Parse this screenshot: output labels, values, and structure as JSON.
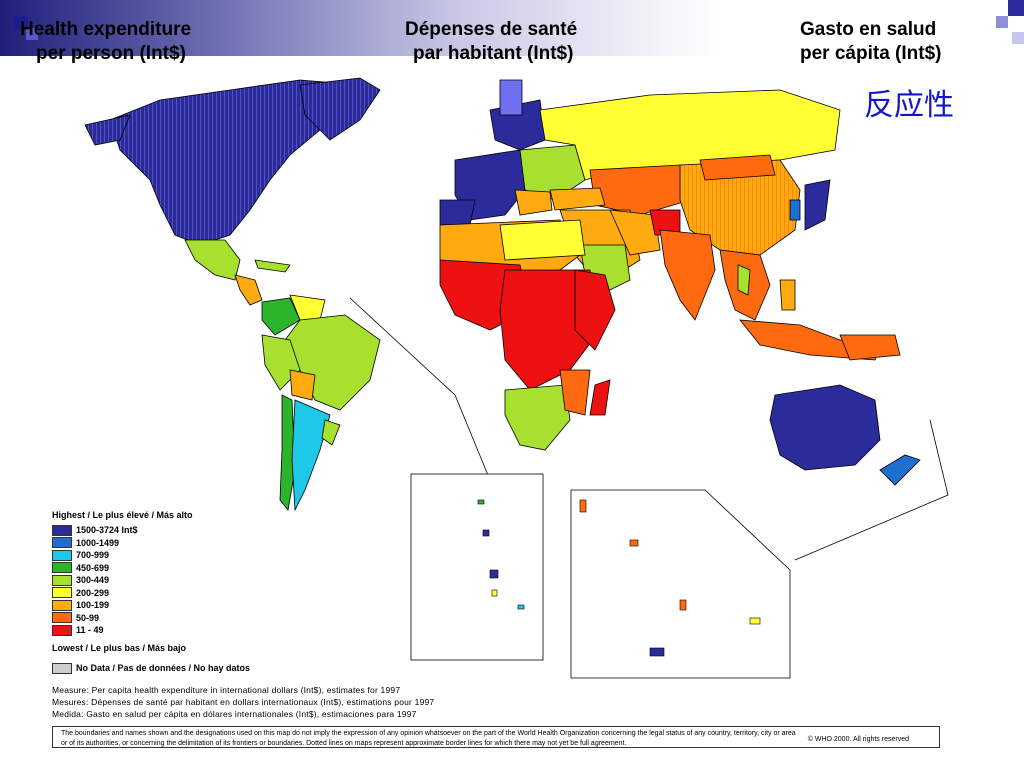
{
  "titles": {
    "en_line1": "Health expenditure",
    "en_line2": "per person (Int$)",
    "fr_line1": "Dépenses de santé",
    "fr_line2": "par habitant (Int$)",
    "es_line1": "Gasto en salud",
    "es_line2": "per cápita (Int$)"
  },
  "cjk_text": "反应性",
  "legend": {
    "highest": "Highest / Le plus élevé / Más alto",
    "lowest": "Lowest / Le plus bas / Más bajo",
    "no_data": "No Data / Pas de données / No hay datos",
    "no_data_color": "#cccccc",
    "classes": [
      {
        "label": "1500-3724 Int$",
        "color": "#2b2b9c"
      },
      {
        "label": "1000-1499",
        "color": "#1f6fd1"
      },
      {
        "label": "700-999",
        "color": "#1ec8e8"
      },
      {
        "label": "450-699",
        "color": "#2bb52b"
      },
      {
        "label": "300-449",
        "color": "#a8e030"
      },
      {
        "label": "200-299",
        "color": "#ffff33"
      },
      {
        "label": "100-199",
        "color": "#ffaa11"
      },
      {
        "label": "50-99",
        "color": "#ff6a10"
      },
      {
        "label": "11 - 49",
        "color": "#ee1111"
      }
    ]
  },
  "measure": {
    "en": "Measure: Per capita health expenditure in international dollars (Int$),  estimates for 1997",
    "fr": "Mesures: Dépenses de santé par habitant en dollars internationaux (Int$), estimations pour 1997",
    "es": "Medida: Gasto en salud per cápita en dólares internationales (Int$), estimaciones para 1997"
  },
  "disclaimer": {
    "line1": "The boundaries and names shown and the designations used on this map do not imply the expression of any opinion whatsoever on the part of the World Health Organization concerning the legal status of any country,  territory, city or area",
    "line2": "or of its authorities, or concerning the delimitation of its frontiers or boundaries. Dotted lines on maps represent approximate border lines for which there may not yet be full agreement.",
    "copyright": "©    WHO 2000. All rights reserved"
  }
}
